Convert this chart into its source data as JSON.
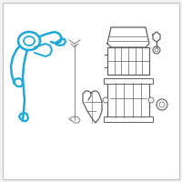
{
  "background_color": "#f2f2f2",
  "border_color": "#c8c8c8",
  "cable_color": "#1fa8d8",
  "line_color": "#999999",
  "dark_line": "#606060",
  "fill_white": "#ffffff"
}
